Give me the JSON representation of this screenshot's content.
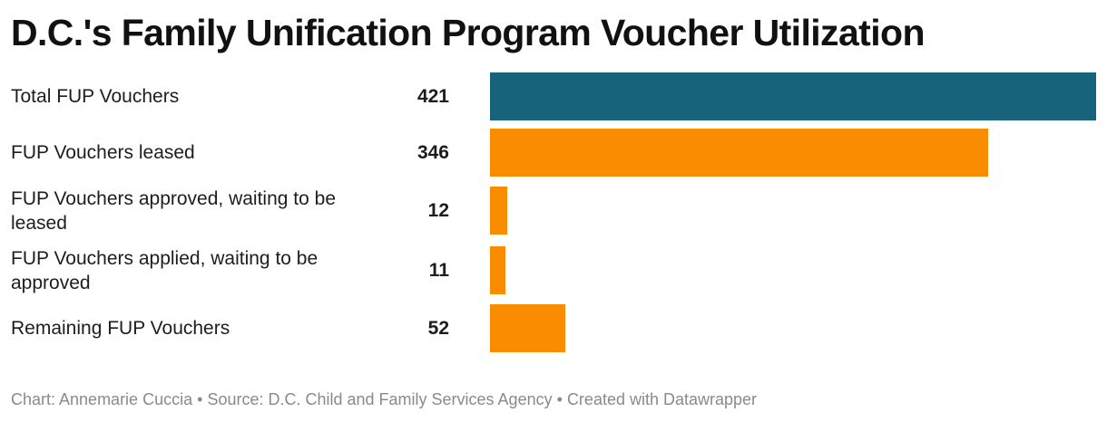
{
  "title": "D.C.'s Family Unification Program Voucher Utilization",
  "chart_data": {
    "type": "bar",
    "orientation": "horizontal",
    "title": "D.C.'s Family Unification Program Voucher Utilization",
    "categories": [
      "Total FUP Vouchers",
      "FUP Vouchers leased",
      "FUP Vouchers approved, waiting to be leased",
      "FUP Vouchers applied, waiting to be approved",
      "Remaining FUP Vouchers"
    ],
    "values": [
      421,
      346,
      12,
      11,
      52
    ],
    "value_labels": [
      "421",
      "346",
      "12",
      "11",
      "52"
    ],
    "colors": [
      "#17637c",
      "#f98c00",
      "#f98c00",
      "#f98c00",
      "#f98c00"
    ],
    "xlim": [
      0,
      421
    ],
    "xlabel": "",
    "ylabel": "",
    "grid": false
  },
  "footer": {
    "chart_credit": "Chart: Annemarie Cuccia",
    "separator": "•",
    "source": "Source: D.C. Child and Family Services Agency",
    "tool": "Created with Datawrapper"
  }
}
